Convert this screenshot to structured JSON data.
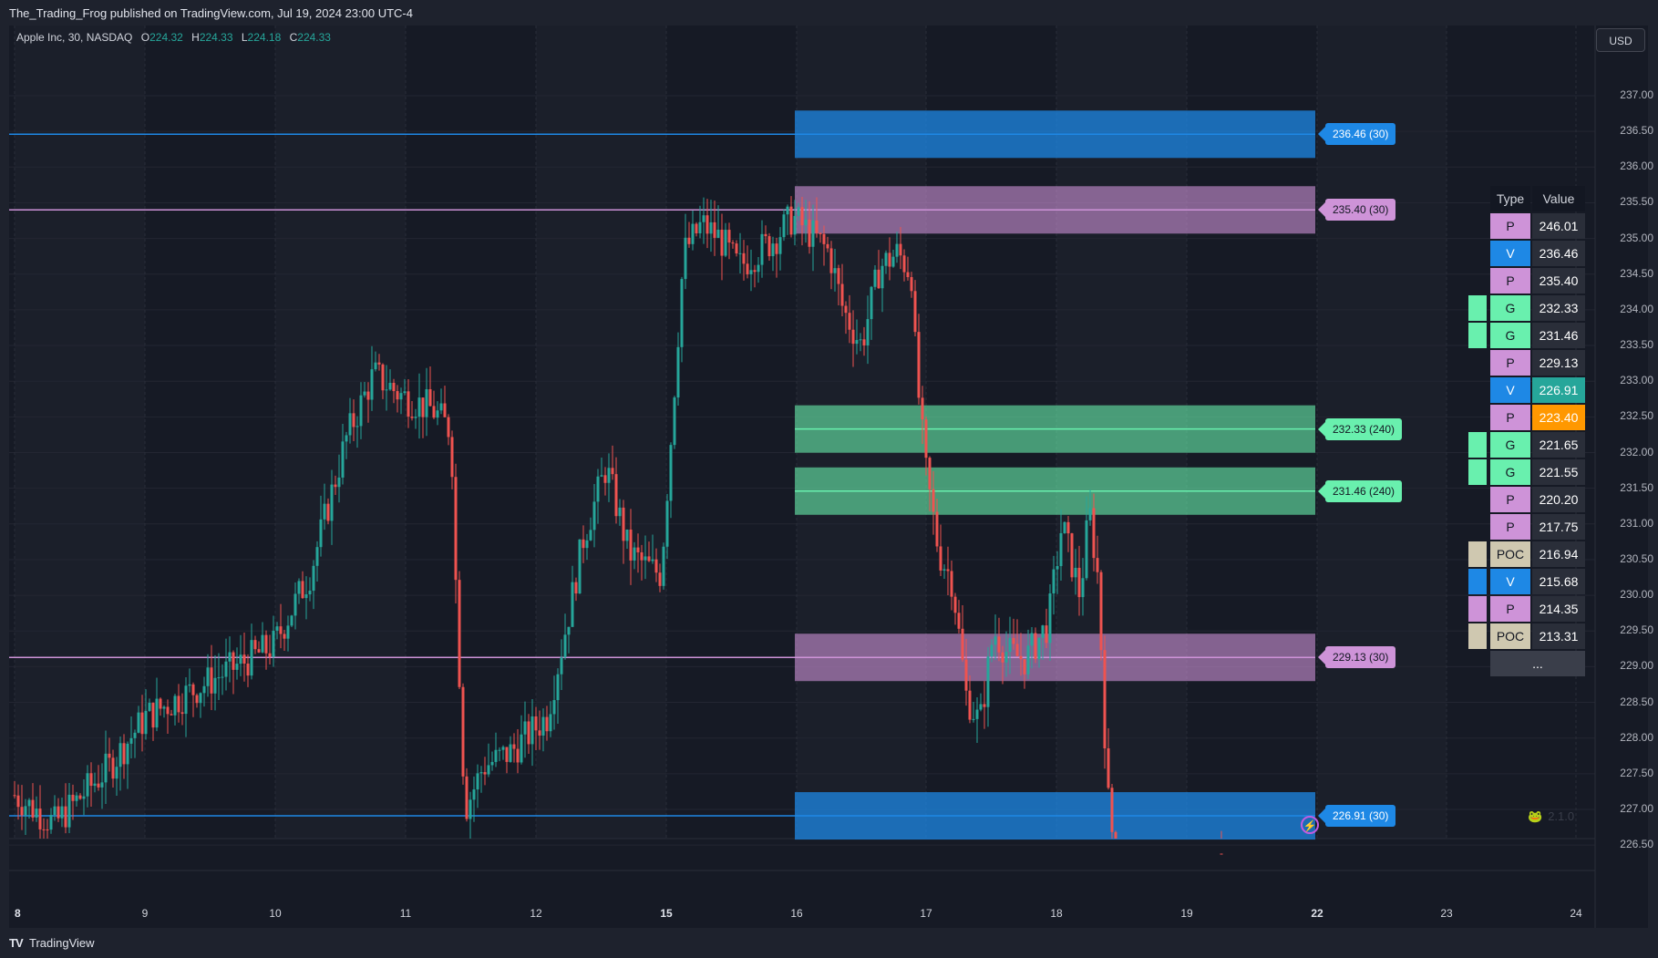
{
  "header": {
    "publisher_line": "The_Trading_Frog published on TradingView.com, Jul 19, 2024 23:00 UTC-4"
  },
  "legend": {
    "symbol": "Apple Inc, 30, NASDAQ",
    "open_label": "O",
    "open": "224.32",
    "high_label": "H",
    "high": "224.33",
    "low_label": "L",
    "low": "224.18",
    "close_label": "C",
    "close": "224.33"
  },
  "currency_button": "USD",
  "price_scale": [
    "237.00",
    "236.50",
    "236.00",
    "235.50",
    "235.00",
    "234.50",
    "234.00",
    "233.50",
    "233.00",
    "232.50",
    "232.00",
    "231.50",
    "231.00",
    "230.50",
    "230.00",
    "229.50",
    "229.00",
    "228.50",
    "228.00",
    "227.50",
    "227.00",
    "226.50"
  ],
  "time_scale": [
    {
      "label": "8",
      "bold": true
    },
    {
      "label": "9",
      "bold": false
    },
    {
      "label": "10",
      "bold": false
    },
    {
      "label": "11",
      "bold": false
    },
    {
      "label": "12",
      "bold": false
    },
    {
      "label": "15",
      "bold": true
    },
    {
      "label": "16",
      "bold": false
    },
    {
      "label": "17",
      "bold": false
    },
    {
      "label": "18",
      "bold": false
    },
    {
      "label": "19",
      "bold": false
    },
    {
      "label": "22",
      "bold": true
    },
    {
      "label": "23",
      "bold": false
    },
    {
      "label": "24",
      "bold": false
    }
  ],
  "level_labels": [
    {
      "text": "236.46 (30)",
      "price": 236.46,
      "type": "V",
      "color": "#1e88e5"
    },
    {
      "text": "235.40 (30)",
      "price": 235.4,
      "type": "P",
      "color": "#ce93d8"
    },
    {
      "text": "232.33 (240)",
      "price": 232.33,
      "type": "G",
      "color": "#69f0ae"
    },
    {
      "text": "231.46 (240)",
      "price": 231.46,
      "type": "G",
      "color": "#69f0ae"
    },
    {
      "text": "229.13 (30)",
      "price": 229.13,
      "type": "P",
      "color": "#ce93d8"
    },
    {
      "text": "226.91 (30)",
      "price": 226.91,
      "type": "V",
      "color": "#1e88e5"
    }
  ],
  "table": {
    "headers": [
      "Type",
      "Value"
    ],
    "rows": [
      {
        "type": "P",
        "value": "246.01",
        "side": false,
        "hl": ""
      },
      {
        "type": "V",
        "value": "236.46",
        "side": false,
        "hl": ""
      },
      {
        "type": "P",
        "value": "235.40",
        "side": false,
        "hl": ""
      },
      {
        "type": "G",
        "value": "232.33",
        "side": true,
        "hl": ""
      },
      {
        "type": "G",
        "value": "231.46",
        "side": true,
        "hl": ""
      },
      {
        "type": "P",
        "value": "229.13",
        "side": false,
        "hl": ""
      },
      {
        "type": "V",
        "value": "226.91",
        "side": false,
        "hl": "teal"
      },
      {
        "type": "P",
        "value": "223.40",
        "side": false,
        "hl": "orange"
      },
      {
        "type": "G",
        "value": "221.65",
        "side": true,
        "hl": ""
      },
      {
        "type": "G",
        "value": "221.55",
        "side": true,
        "hl": ""
      },
      {
        "type": "P",
        "value": "220.20",
        "side": false,
        "hl": ""
      },
      {
        "type": "P",
        "value": "217.75",
        "side": false,
        "hl": ""
      },
      {
        "type": "POC",
        "value": "216.94",
        "side": true,
        "hl": ""
      },
      {
        "type": "V",
        "value": "215.68",
        "side": true,
        "hl": ""
      },
      {
        "type": "P",
        "value": "214.35",
        "side": true,
        "hl": ""
      },
      {
        "type": "POC",
        "value": "213.31",
        "side": true,
        "hl": ""
      }
    ],
    "more": "..."
  },
  "type_colors": {
    "P": "#ce93d8",
    "V": "#1e88e5",
    "G": "#69f0ae",
    "POC": "#cfc8b0"
  },
  "indicator_version": "2.1.0",
  "footer": {
    "brand": "TradingView"
  },
  "icons": {
    "bolt": "bolt-icon",
    "frog": "frog-icon",
    "logo": "tradingview-logo-icon"
  }
}
